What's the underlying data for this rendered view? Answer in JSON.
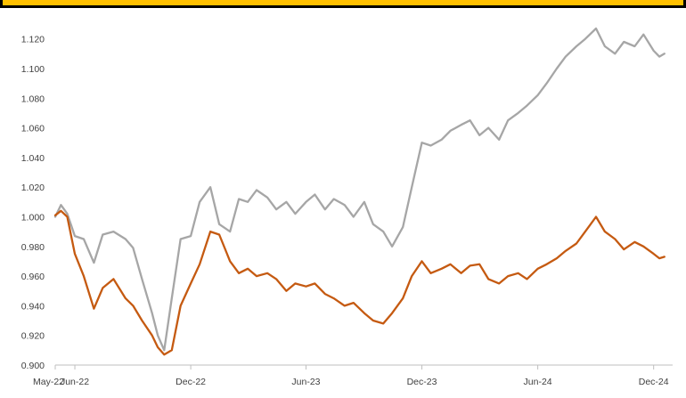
{
  "chart_data": {
    "type": "line",
    "title": "",
    "xlabel": "",
    "ylabel": "",
    "ylim": [
      0.9,
      1.13
    ],
    "x_ticks": [
      {
        "date": "2022-05-01",
        "label": "May-22"
      },
      {
        "date": "2022-06-01",
        "label": "Jun-22"
      },
      {
        "date": "2022-12-01",
        "label": "Dec-22"
      },
      {
        "date": "2023-06-01",
        "label": "Jun-23"
      },
      {
        "date": "2023-12-01",
        "label": "Dec-23"
      },
      {
        "date": "2024-06-01",
        "label": "Jun-24"
      },
      {
        "date": "2024-12-01",
        "label": "Dec-24"
      }
    ],
    "y_ticks": [
      "0.900",
      "0.920",
      "0.940",
      "0.960",
      "0.980",
      "1.000",
      "1.020",
      "1.040",
      "1.060",
      "1.080",
      "1.100",
      "1.120"
    ],
    "grid": false,
    "legend": "none",
    "series": [
      {
        "color": "#a6a6a6",
        "x": [
          "2022-05-01",
          "2022-05-10",
          "2022-05-20",
          "2022-06-01",
          "2022-06-15",
          "2022-07-01",
          "2022-07-15",
          "2022-08-01",
          "2022-08-20",
          "2022-09-01",
          "2022-09-15",
          "2022-10-01",
          "2022-10-10",
          "2022-10-20",
          "2022-11-01",
          "2022-11-15",
          "2022-12-01",
          "2022-12-15",
          "2023-01-01",
          "2023-01-15",
          "2023-02-01",
          "2023-02-15",
          "2023-03-01",
          "2023-03-15",
          "2023-04-01",
          "2023-04-15",
          "2023-05-01",
          "2023-05-15",
          "2023-06-01",
          "2023-06-15",
          "2023-07-01",
          "2023-07-15",
          "2023-08-01",
          "2023-08-15",
          "2023-09-01",
          "2023-09-15",
          "2023-10-01",
          "2023-10-15",
          "2023-11-01",
          "2023-11-15",
          "2023-12-01",
          "2023-12-15",
          "2024-01-01",
          "2024-01-15",
          "2024-02-01",
          "2024-02-15",
          "2024-03-01",
          "2024-03-15",
          "2024-04-01",
          "2024-04-15",
          "2024-05-01",
          "2024-05-15",
          "2024-06-01",
          "2024-06-15",
          "2024-07-01",
          "2024-07-15",
          "2024-08-01",
          "2024-08-15",
          "2024-09-01",
          "2024-09-15",
          "2024-10-01",
          "2024-10-15",
          "2024-11-01",
          "2024-11-15",
          "2024-12-01",
          "2024-12-10",
          "2024-12-18"
        ],
        "y": [
          1.0,
          1.008,
          1.002,
          0.987,
          0.985,
          0.969,
          0.988,
          0.99,
          0.985,
          0.979,
          0.958,
          0.935,
          0.92,
          0.91,
          0.945,
          0.985,
          0.987,
          1.01,
          1.02,
          0.995,
          0.99,
          1.012,
          1.01,
          1.018,
          1.013,
          1.005,
          1.01,
          1.002,
          1.01,
          1.015,
          1.005,
          1.012,
          1.008,
          1.0,
          1.01,
          0.995,
          0.99,
          0.98,
          0.993,
          1.02,
          1.05,
          1.048,
          1.052,
          1.058,
          1.062,
          1.065,
          1.055,
          1.06,
          1.052,
          1.065,
          1.07,
          1.075,
          1.082,
          1.09,
          1.1,
          1.108,
          1.115,
          1.12,
          1.127,
          1.115,
          1.11,
          1.118,
          1.115,
          1.123,
          1.112,
          1.108,
          1.11
        ]
      },
      {
        "color": "#c55a11",
        "x": [
          "2022-05-01",
          "2022-05-10",
          "2022-05-20",
          "2022-06-01",
          "2022-06-15",
          "2022-07-01",
          "2022-07-15",
          "2022-08-01",
          "2022-08-20",
          "2022-09-01",
          "2022-09-15",
          "2022-10-01",
          "2022-10-10",
          "2022-10-20",
          "2022-11-01",
          "2022-11-15",
          "2022-12-01",
          "2022-12-15",
          "2023-01-01",
          "2023-01-15",
          "2023-02-01",
          "2023-02-15",
          "2023-03-01",
          "2023-03-15",
          "2023-04-01",
          "2023-04-15",
          "2023-05-01",
          "2023-05-15",
          "2023-06-01",
          "2023-06-15",
          "2023-07-01",
          "2023-07-15",
          "2023-08-01",
          "2023-08-15",
          "2023-09-01",
          "2023-09-15",
          "2023-10-01",
          "2023-10-15",
          "2023-11-01",
          "2023-11-15",
          "2023-12-01",
          "2023-12-15",
          "2024-01-01",
          "2024-01-15",
          "2024-02-01",
          "2024-02-15",
          "2024-03-01",
          "2024-03-15",
          "2024-04-01",
          "2024-04-15",
          "2024-05-01",
          "2024-05-15",
          "2024-06-01",
          "2024-06-15",
          "2024-07-01",
          "2024-07-15",
          "2024-08-01",
          "2024-08-15",
          "2024-09-01",
          "2024-09-15",
          "2024-10-01",
          "2024-10-15",
          "2024-11-01",
          "2024-11-15",
          "2024-12-01",
          "2024-12-10",
          "2024-12-18"
        ],
        "y": [
          1.001,
          1.004,
          1.0,
          0.975,
          0.96,
          0.938,
          0.952,
          0.958,
          0.945,
          0.94,
          0.93,
          0.92,
          0.912,
          0.907,
          0.91,
          0.94,
          0.955,
          0.968,
          0.99,
          0.988,
          0.97,
          0.962,
          0.965,
          0.96,
          0.962,
          0.958,
          0.95,
          0.955,
          0.953,
          0.955,
          0.948,
          0.945,
          0.94,
          0.942,
          0.935,
          0.93,
          0.928,
          0.935,
          0.945,
          0.96,
          0.97,
          0.962,
          0.965,
          0.968,
          0.962,
          0.967,
          0.968,
          0.958,
          0.955,
          0.96,
          0.962,
          0.958,
          0.965,
          0.968,
          0.972,
          0.977,
          0.982,
          0.99,
          1.0,
          0.99,
          0.985,
          0.978,
          0.983,
          0.98,
          0.975,
          0.972,
          0.973
        ]
      }
    ]
  }
}
